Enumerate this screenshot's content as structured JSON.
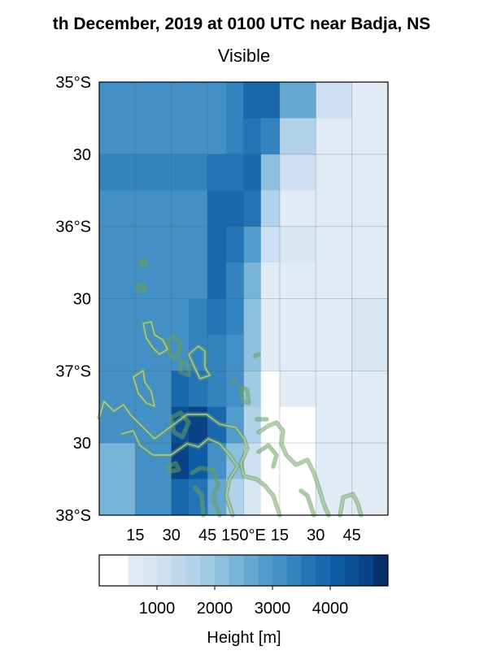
{
  "title": "th December, 2019 at 0100 UTC near Badja, NS",
  "subtitle": "Visible",
  "map": {
    "lat_ticks": [
      {
        "lat": -35.0,
        "label": "35°S"
      },
      {
        "lat": -35.5,
        "label": "30"
      },
      {
        "lat": -36.0,
        "label": "36°S"
      },
      {
        "lat": -36.5,
        "label": "30"
      },
      {
        "lat": -37.0,
        "label": "37°S"
      },
      {
        "lat": -37.5,
        "label": "30"
      },
      {
        "lat": -38.0,
        "label": "38°S"
      }
    ],
    "lon_ticks": [
      {
        "lon": 149.25,
        "label": "15"
      },
      {
        "lon": 149.5,
        "label": "30"
      },
      {
        "lon": 149.75,
        "label": "45"
      },
      {
        "lon": 150.0,
        "label": "150°E"
      },
      {
        "lon": 150.25,
        "label": "15"
      },
      {
        "lon": 150.5,
        "label": "30"
      },
      {
        "lon": 150.75,
        "label": "45"
      }
    ],
    "lon_range": [
      149.0,
      151.0
    ],
    "lat_range": [
      -38.0,
      -35.0
    ],
    "grid": true,
    "coastline_color": "#6a9e5e",
    "field_grid": {
      "lon_edges": [
        149.0,
        149.25,
        149.5,
        149.62,
        149.75,
        149.88,
        150.0,
        150.12,
        150.25,
        150.5,
        150.75,
        151.0
      ],
      "lat_edges": [
        -35.0,
        -35.25,
        -35.5,
        -35.75,
        -36.0,
        -36.25,
        -36.5,
        -36.75,
        -37.0,
        -37.25,
        -37.5,
        -37.75,
        -38.0
      ],
      "heights": [
        [
          3150,
          3150,
          3150,
          3150,
          3150,
          3300,
          3850,
          3950,
          2500,
          1200,
          700
        ],
        [
          3150,
          3150,
          3150,
          3150,
          3150,
          3300,
          3700,
          3300,
          1600,
          600,
          600
        ],
        [
          3300,
          3300,
          3300,
          3400,
          3500,
          3700,
          3800,
          2100,
          1000,
          600,
          600
        ],
        [
          3000,
          3100,
          3100,
          3200,
          3900,
          3800,
          3500,
          1700,
          600,
          600,
          600
        ],
        [
          3100,
          3100,
          3100,
          3200,
          3950,
          3700,
          2900,
          1000,
          800,
          600,
          600
        ],
        [
          3100,
          3100,
          3100,
          3100,
          3950,
          3400,
          2300,
          600,
          500,
          600,
          700
        ],
        [
          3150,
          3150,
          3150,
          3300,
          3600,
          3400,
          2200,
          500,
          500,
          700,
          800
        ],
        [
          3200,
          3200,
          3200,
          3300,
          3400,
          3200,
          2000,
          500,
          500,
          700,
          800
        ],
        [
          3200,
          3200,
          3800,
          3500,
          3300,
          3000,
          1800,
          300,
          500,
          700,
          700
        ],
        [
          3000,
          3000,
          4400,
          4500,
          3800,
          2800,
          1500,
          300,
          300,
          500,
          600
        ],
        [
          2300,
          3000,
          4500,
          4200,
          3200,
          2200,
          1000,
          300,
          300,
          600,
          600
        ],
        [
          2400,
          3100,
          3900,
          3700,
          2500,
          1700,
          800,
          300,
          300,
          600,
          600
        ]
      ]
    }
  },
  "colorbar": {
    "label": "Height [m]",
    "min": 0,
    "max": 5000,
    "ticks": [
      {
        "value": 1000,
        "label": "1000"
      },
      {
        "value": 2000,
        "label": "2000"
      },
      {
        "value": 3000,
        "label": "3000"
      },
      {
        "value": 4000,
        "label": "4000"
      }
    ],
    "levels": [
      0,
      500,
      750,
      1000,
      1250,
      1500,
      1750,
      2000,
      2250,
      2500,
      2750,
      3000,
      3250,
      3500,
      3750,
      4000,
      4250,
      4500,
      4750,
      5000
    ],
    "colors": [
      "#ffffff",
      "#e0ebf6",
      "#d7e6f3",
      "#cddff1",
      "#c0d8ed",
      "#b1d2e8",
      "#a0c9e3",
      "#8cc0de",
      "#77b4d8",
      "#64a8d2",
      "#529ccc",
      "#4290c5",
      "#3383be",
      "#2575b6",
      "#1968ad",
      "#0d5ba3",
      "#0a4f95",
      "#094286",
      "#08306b"
    ]
  }
}
